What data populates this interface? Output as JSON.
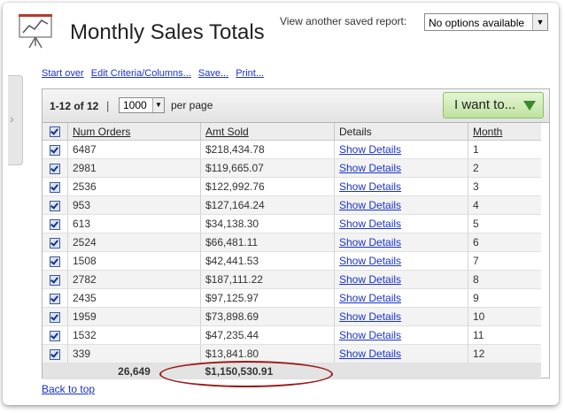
{
  "header": {
    "title": "Monthly Sales Totals",
    "saved_report_label": "View another saved report:",
    "saved_report_value": "No options available"
  },
  "links": {
    "start_over": "Start over",
    "edit_criteria": "Edit Criteria/Columns...",
    "save": "Save...",
    "print": "Print..."
  },
  "toolbar": {
    "count": "1-12 of 12",
    "separator": "|",
    "per_page_value": "1000",
    "per_page_label": "per page",
    "action_button": "I want to..."
  },
  "table": {
    "columns": [
      "Num Orders",
      "Amt Sold",
      "Details",
      "Month"
    ],
    "rows": [
      {
        "orders": "6487",
        "amount": "$218,434.78",
        "details": "Show Details",
        "month": "1"
      },
      {
        "orders": "2981",
        "amount": "$119,665.07",
        "details": "Show Details",
        "month": "2"
      },
      {
        "orders": "2536",
        "amount": "$122,992.76",
        "details": "Show Details",
        "month": "3"
      },
      {
        "orders": "953",
        "amount": "$127,164.24",
        "details": "Show Details",
        "month": "4"
      },
      {
        "orders": "613",
        "amount": "$34,138.30",
        "details": "Show Details",
        "month": "5"
      },
      {
        "orders": "2524",
        "amount": "$66,481.11",
        "details": "Show Details",
        "month": "6"
      },
      {
        "orders": "1508",
        "amount": "$42,441.53",
        "details": "Show Details",
        "month": "7"
      },
      {
        "orders": "2782",
        "amount": "$187,111.22",
        "details": "Show Details",
        "month": "8"
      },
      {
        "orders": "2435",
        "amount": "$97,125.97",
        "details": "Show Details",
        "month": "9"
      },
      {
        "orders": "1959",
        "amount": "$73,898.69",
        "details": "Show Details",
        "month": "10"
      },
      {
        "orders": "1532",
        "amount": "$47,235.44",
        "details": "Show Details",
        "month": "11"
      },
      {
        "orders": "339",
        "amount": "$13,841.80",
        "details": "Show Details",
        "month": "12"
      }
    ],
    "totals": {
      "orders": "26,649",
      "amount": "$1,150,530.91"
    }
  },
  "footer": {
    "back_to_top": "Back to top"
  },
  "icons": {
    "report": "presentation-chart-icon",
    "select_arrow": "dropdown-arrow-icon",
    "action": "triangle-down-icon",
    "checkbox": "checked-checkbox-icon",
    "side": "chevron-right-icon"
  },
  "colors": {
    "link": "#1a33cc",
    "action_button_bg": "#bfe2a0",
    "annotation": "#9b1a1a"
  }
}
